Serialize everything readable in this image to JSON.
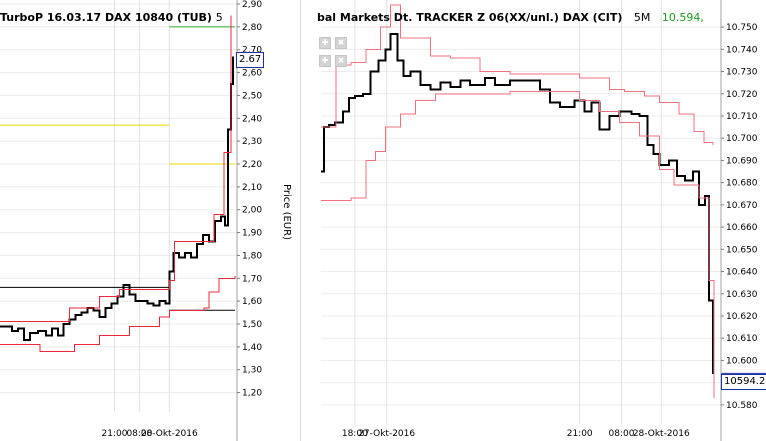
{
  "left_chart": {
    "title_main": "TurboP 16.03.17 DAX 10840 (TUB)",
    "title_extra": "5",
    "last_price_label": "2.67",
    "ylabel": "Price (EUR)",
    "colors": {
      "price": "#000000",
      "band": "#e8283c",
      "level_green": "#3aa635",
      "level_yellow": "#e8d800",
      "level_black": "#000000"
    }
  },
  "right_chart": {
    "title_main": "bal Markets Dt. TRACKER Z 06(XX/unl.) DAX (CIT)",
    "title_interval": "5M",
    "title_value": "10.594,",
    "last_price_label": "10594.2",
    "colors": {
      "price": "#000000",
      "band": "#f07080",
      "last_line": "#1c2fa0"
    }
  },
  "toolbar": {
    "icons": [
      "zoom-in-icon",
      "zoom-out-icon",
      "pan-left-icon",
      "pan-right-icon"
    ]
  },
  "chart_data": [
    {
      "type": "line",
      "title": "TurboP 16.03.17 DAX 10840 (TUB)",
      "xlabel": "",
      "ylabel": "Price (EUR)",
      "ylim": [
        1.15,
        2.9
      ],
      "yticks": [
        "1,20",
        "1,30",
        "1,40",
        "1,50",
        "1,60",
        "1,70",
        "1,80",
        "1,90",
        "2,00",
        "2,10",
        "2,20",
        "2,30",
        "2,40",
        "2,50",
        "2,60",
        "2,70",
        "2,80",
        "2,90"
      ],
      "ytick_values": [
        1.2,
        1.3,
        1.4,
        1.5,
        1.6,
        1.7,
        1.8,
        1.9,
        2.0,
        2.1,
        2.2,
        2.3,
        2.4,
        2.5,
        2.6,
        2.7,
        2.8,
        2.9
      ],
      "xticks": [
        "21:00",
        "08:00",
        "28-Okt-2016"
      ],
      "xtick_index": [
        115,
        140,
        170
      ],
      "x_count": 238,
      "grid": true,
      "series": [
        {
          "role": "price",
          "points": [
            [
              0,
              1.49
            ],
            [
              12,
              1.47
            ],
            [
              18,
              1.48
            ],
            [
              24,
              1.43
            ],
            [
              30,
              1.46
            ],
            [
              38,
              1.47
            ],
            [
              46,
              1.45
            ],
            [
              52,
              1.48
            ],
            [
              58,
              1.45
            ],
            [
              64,
              1.5
            ],
            [
              70,
              1.52
            ],
            [
              76,
              1.54
            ],
            [
              82,
              1.55
            ],
            [
              88,
              1.57
            ],
            [
              94,
              1.56
            ],
            [
              100,
              1.53
            ],
            [
              106,
              1.57
            ],
            [
              112,
              1.59
            ],
            [
              118,
              1.62
            ],
            [
              124,
              1.67
            ],
            [
              130,
              1.63
            ],
            [
              136,
              1.6
            ],
            [
              142,
              1.6
            ],
            [
              148,
              1.59
            ],
            [
              154,
              1.58
            ],
            [
              160,
              1.6
            ],
            [
              166,
              1.59
            ],
            [
              170,
              1.73
            ],
            [
              174,
              1.81
            ],
            [
              180,
              1.79
            ],
            [
              186,
              1.81
            ],
            [
              192,
              1.79
            ],
            [
              198,
              1.85
            ],
            [
              204,
              1.89
            ],
            [
              210,
              1.86
            ],
            [
              216,
              1.95
            ],
            [
              222,
              1.97
            ],
            [
              226,
              1.93
            ],
            [
              229,
              2.35
            ],
            [
              232,
              2.55
            ],
            [
              234,
              2.67
            ]
          ]
        },
        {
          "role": "upper-band",
          "points": [
            [
              0,
              1.51
            ],
            [
              40,
              1.51
            ],
            [
              70,
              1.57
            ],
            [
              100,
              1.62
            ],
            [
              120,
              1.65
            ],
            [
              170,
              1.69
            ],
            [
              175,
              1.86
            ],
            [
              200,
              1.86
            ],
            [
              215,
              1.98
            ],
            [
              225,
              2.25
            ],
            [
              232,
              2.85
            ]
          ]
        },
        {
          "role": "lower-band",
          "points": [
            [
              0,
              1.41
            ],
            [
              40,
              1.38
            ],
            [
              75,
              1.41
            ],
            [
              100,
              1.45
            ],
            [
              130,
              1.49
            ],
            [
              160,
              1.53
            ],
            [
              170,
              1.56
            ],
            [
              205,
              1.57
            ],
            [
              210,
              1.64
            ],
            [
              220,
              1.7
            ],
            [
              236,
              1.71
            ]
          ]
        }
      ],
      "levels": [
        {
          "color": "green",
          "value": 2.8,
          "x": [
            170,
            236
          ]
        },
        {
          "color": "yellow",
          "value": 2.37,
          "x": [
            0,
            170
          ]
        },
        {
          "color": "yellow",
          "value": 2.2,
          "x": [
            170,
            236
          ]
        },
        {
          "color": "black",
          "value": 1.66,
          "x": [
            0,
            170
          ]
        },
        {
          "color": "black",
          "value": 1.56,
          "x": [
            170,
            236
          ]
        }
      ],
      "last": 2.67
    },
    {
      "type": "line",
      "title": "bal Markets Dt. TRACKER Z 06(XX/unl.) DAX (CIT)",
      "xlabel": "",
      "ylabel": "",
      "ylim": [
        10.575,
        10.755
      ],
      "yticks": [
        "10.580",
        "10.590",
        "10.600",
        "10.610",
        "10.620",
        "10.630",
        "10.640",
        "10.650",
        "10.660",
        "10.670",
        "10.680",
        "10.690",
        "10.700",
        "10.710",
        "10.720",
        "10.730",
        "10.740",
        "10.750"
      ],
      "ytick_values": [
        10.58,
        10.59,
        10.6,
        10.61,
        10.62,
        10.63,
        10.64,
        10.65,
        10.66,
        10.67,
        10.68,
        10.69,
        10.7,
        10.71,
        10.72,
        10.73,
        10.74,
        10.75
      ],
      "xticks": [
        "18:00",
        "27-Okt-2016",
        "21:00",
        "08:00",
        "28-Okt-2016"
      ],
      "xtick_index": [
        34,
        66,
        260,
        302,
        342
      ],
      "x_count": 400,
      "grid": true,
      "series": [
        {
          "role": "price",
          "points": [
            [
              0,
              10.685
            ],
            [
              3,
              10.705
            ],
            [
              8,
              10.706
            ],
            [
              14,
              10.707
            ],
            [
              22,
              10.712
            ],
            [
              28,
              10.718
            ],
            [
              34,
              10.719
            ],
            [
              42,
              10.72
            ],
            [
              50,
              10.73
            ],
            [
              58,
              10.735
            ],
            [
              65,
              10.74
            ],
            [
              70,
              10.747
            ],
            [
              77,
              10.735
            ],
            [
              83,
              10.728
            ],
            [
              90,
              10.73
            ],
            [
              100,
              10.724
            ],
            [
              110,
              10.722
            ],
            [
              120,
              10.725
            ],
            [
              130,
              10.723
            ],
            [
              140,
              10.726
            ],
            [
              150,
              10.724
            ],
            [
              165,
              10.727
            ],
            [
              175,
              10.724
            ],
            [
              190,
              10.726
            ],
            [
              205,
              10.726
            ],
            [
              220,
              10.722
            ],
            [
              230,
              10.716
            ],
            [
              240,
              10.714
            ],
            [
              255,
              10.717
            ],
            [
              265,
              10.712
            ],
            [
              272,
              10.716
            ],
            [
              280,
              10.704
            ],
            [
              290,
              10.71
            ],
            [
              300,
              10.712
            ],
            [
              312,
              10.711
            ],
            [
              320,
              10.71
            ],
            [
              328,
              10.697
            ],
            [
              334,
              10.693
            ],
            [
              340,
              10.688
            ],
            [
              350,
              10.69
            ],
            [
              358,
              10.683
            ],
            [
              366,
              10.681
            ],
            [
              374,
              10.685
            ],
            [
              380,
              10.67
            ],
            [
              386,
              10.674
            ],
            [
              390,
              10.627
            ],
            [
              394,
              10.594
            ]
          ]
        },
        {
          "role": "upper-band",
          "points": [
            [
              0,
              10.705
            ],
            [
              15,
              10.733
            ],
            [
              30,
              10.734
            ],
            [
              45,
              10.74
            ],
            [
              60,
              10.75
            ],
            [
              70,
              10.76
            ],
            [
              80,
              10.745
            ],
            [
              110,
              10.737
            ],
            [
              130,
              10.736
            ],
            [
              160,
              10.73
            ],
            [
              190,
              10.729
            ],
            [
              230,
              10.729
            ],
            [
              260,
              10.727
            ],
            [
              290,
              10.722
            ],
            [
              305,
              10.721
            ],
            [
              325,
              10.719
            ],
            [
              340,
              10.716
            ],
            [
              360,
              10.711
            ],
            [
              375,
              10.703
            ],
            [
              385,
              10.698
            ],
            [
              394,
              10.697
            ]
          ]
        },
        {
          "role": "lower-band",
          "points": [
            [
              0,
              10.672
            ],
            [
              30,
              10.673
            ],
            [
              45,
              10.69
            ],
            [
              55,
              10.694
            ],
            [
              65,
              10.705
            ],
            [
              80,
              10.711
            ],
            [
              95,
              10.717
            ],
            [
              115,
              10.72
            ],
            [
              150,
              10.72
            ],
            [
              190,
              10.721
            ],
            [
              230,
              10.721
            ],
            [
              260,
              10.717
            ],
            [
              280,
              10.712
            ],
            [
              300,
              10.707
            ],
            [
              320,
              10.701
            ],
            [
              340,
              10.686
            ],
            [
              355,
              10.679
            ],
            [
              370,
              10.679
            ],
            [
              380,
              10.673
            ],
            [
              390,
              10.636
            ],
            [
              395,
              10.583
            ]
          ]
        }
      ],
      "last": 10.5942
    }
  ]
}
